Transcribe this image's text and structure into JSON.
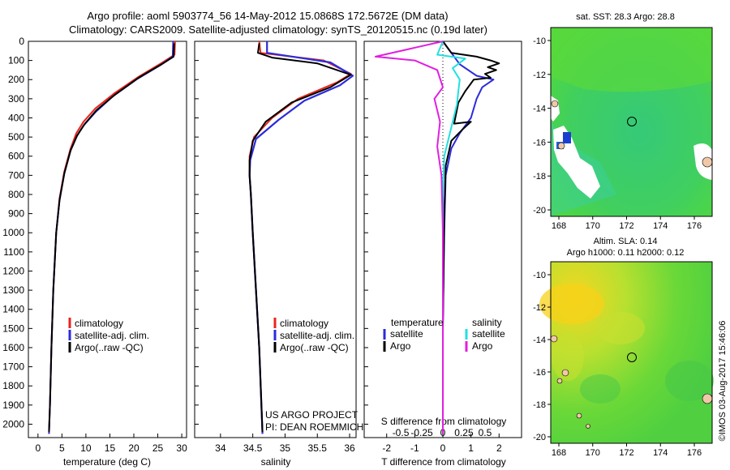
{
  "title_line1": "Argo profile: aoml 5903774_56 14-May-2012 15.0868S 172.5672E (DM data)",
  "title_line2": "Climatology: CARS2009. Satellite-adjusted climatology: synTS_20120515.nc (0.19d later)",
  "colors": {
    "climatology": "#e8241c",
    "satellite": "#2b2bdc",
    "argo": "#000000",
    "s_satellite": "#22e0e0",
    "s_argo": "#e020e0"
  },
  "chart_data": [
    {
      "type": "line",
      "title": "",
      "xlabel": "temperature (deg C)",
      "ylabel": "",
      "xlim": [
        -2,
        31
      ],
      "ylim": [
        2070,
        0
      ],
      "xticks": [
        0,
        5,
        10,
        15,
        20,
        25,
        30
      ],
      "yticks": [
        0,
        100,
        200,
        300,
        400,
        500,
        600,
        700,
        800,
        900,
        1000,
        1100,
        1200,
        1300,
        1400,
        1500,
        1600,
        1700,
        1800,
        1900,
        2000
      ],
      "legend": [
        "climatology",
        "satellite-adj. clim.",
        "Argo(..raw -QC)"
      ],
      "series": [
        {
          "name": "climatology",
          "points": [
            [
              28.6,
              0
            ],
            [
              28.5,
              70
            ],
            [
              26,
              110
            ],
            [
              21,
              185
            ],
            [
              16,
              270
            ],
            [
              12,
              350
            ],
            [
              9.5,
              420
            ],
            [
              8,
              480
            ],
            [
              6.8,
              560
            ],
            [
              5.5,
              680
            ],
            [
              4.5,
              820
            ],
            [
              3.8,
              1000
            ],
            [
              3.2,
              1300
            ],
            [
              2.8,
              1600
            ],
            [
              2.5,
              1900
            ],
            [
              2.3,
              2050
            ]
          ]
        },
        {
          "name": "satellite-adj. clim.",
          "points": [
            [
              28.2,
              0
            ],
            [
              28.1,
              80
            ],
            [
              25.5,
              125
            ],
            [
              20.5,
              200
            ],
            [
              15.5,
              290
            ],
            [
              12,
              370
            ],
            [
              9.5,
              440
            ],
            [
              8,
              500
            ],
            [
              6.8,
              570
            ],
            [
              5.5,
              690
            ],
            [
              4.5,
              830
            ],
            [
              3.8,
              1000
            ],
            [
              3.2,
              1300
            ],
            [
              2.8,
              1600
            ],
            [
              2.5,
              1900
            ],
            [
              2.3,
              2050
            ]
          ]
        },
        {
          "name": "Argo",
          "points": [
            [
              28.4,
              10
            ],
            [
              28.3,
              80
            ],
            [
              25.8,
              120
            ],
            [
              21,
              190
            ],
            [
              16,
              280
            ],
            [
              12.2,
              360
            ],
            [
              9.8,
              430
            ],
            [
              8.2,
              490
            ],
            [
              6.8,
              570
            ],
            [
              5.5,
              690
            ],
            [
              4.5,
              830
            ],
            [
              3.8,
              1000
            ],
            [
              3.2,
              1300
            ],
            [
              2.8,
              1600
            ],
            [
              2.5,
              1900
            ],
            [
              2.3,
              2040
            ]
          ]
        }
      ]
    },
    {
      "type": "line",
      "title": "",
      "xlabel": "salinity",
      "ylabel": "",
      "xlim": [
        33.6,
        36.1
      ],
      "ylim": [
        2070,
        0
      ],
      "xticks": [
        34,
        34.5,
        35,
        35.5,
        36
      ],
      "legend": [
        "climatology",
        "satellite-adj. clim.",
        "Argo(..raw -QC)"
      ],
      "series": [
        {
          "name": "climatology",
          "points": [
            [
              34.6,
              0
            ],
            [
              34.62,
              60
            ],
            [
              35.6,
              100
            ],
            [
              36.02,
              170
            ],
            [
              35.8,
              215
            ],
            [
              35.2,
              300
            ],
            [
              34.8,
              400
            ],
            [
              34.52,
              500
            ],
            [
              34.45,
              600
            ],
            [
              34.45,
              700
            ],
            [
              34.47,
              800
            ],
            [
              34.5,
              1000
            ],
            [
              34.55,
              1300
            ],
            [
              34.6,
              1600
            ],
            [
              34.65,
              2050
            ]
          ]
        },
        {
          "name": "satellite-adj. clim.",
          "points": [
            [
              34.72,
              0
            ],
            [
              34.72,
              60
            ],
            [
              35.7,
              110
            ],
            [
              36.05,
              180
            ],
            [
              35.85,
              230
            ],
            [
              35.3,
              310
            ],
            [
              34.9,
              410
            ],
            [
              34.55,
              510
            ],
            [
              34.46,
              620
            ],
            [
              34.45,
              700
            ],
            [
              34.47,
              800
            ],
            [
              34.5,
              1000
            ],
            [
              34.55,
              1300
            ],
            [
              34.6,
              1600
            ],
            [
              34.65,
              2050
            ]
          ]
        },
        {
          "name": "Argo",
          "points": [
            [
              34.6,
              10
            ],
            [
              34.58,
              60
            ],
            [
              34.8,
              85
            ],
            [
              35.5,
              115
            ],
            [
              36.02,
              175
            ],
            [
              35.7,
              240
            ],
            [
              35.1,
              320
            ],
            [
              34.7,
              420
            ],
            [
              34.5,
              520
            ],
            [
              34.45,
              620
            ],
            [
              34.45,
              700
            ],
            [
              34.47,
              800
            ],
            [
              34.5,
              1000
            ],
            [
              34.55,
              1300
            ],
            [
              34.6,
              1600
            ],
            [
              34.65,
              2040
            ]
          ]
        }
      ],
      "annotation": [
        "US ARGO PROJECT",
        "PI: DEAN ROEMMICH"
      ]
    },
    {
      "type": "line",
      "title": "",
      "xlabel": "T difference from climatology",
      "xlabel_top": "S difference from climatology",
      "xlim": [
        -2.8,
        2.8
      ],
      "ylim": [
        2070,
        0
      ],
      "xticks": [
        -2,
        -1,
        0,
        1,
        2
      ],
      "xticks_top_labels": [
        "-0.5",
        "-0.25",
        "0",
        "0.25",
        "0.5"
      ],
      "xticks_top_values": [
        -0.5,
        -0.25,
        0,
        0.25,
        0.5
      ],
      "legend": [
        "temperature",
        "satellite",
        "Argo",
        "salinity",
        "satellite",
        "Argo"
      ],
      "series": [
        {
          "name": "T satellite",
          "points": [
            [
              0,
              0
            ],
            [
              0.3,
              60
            ],
            [
              0.6,
              120
            ],
            [
              1.2,
              180
            ],
            [
              1.8,
              200
            ],
            [
              1.4,
              240
            ],
            [
              1.2,
              300
            ],
            [
              1.0,
              400
            ],
            [
              0.6,
              480
            ],
            [
              0.3,
              560
            ],
            [
              0.1,
              700
            ],
            [
              0.05,
              1000
            ],
            [
              0,
              1500
            ],
            [
              0,
              2050
            ]
          ]
        },
        {
          "name": "T Argo",
          "points": [
            [
              0,
              0
            ],
            [
              0.3,
              60
            ],
            [
              1.2,
              80
            ],
            [
              1.7,
              100
            ],
            [
              2.0,
              115
            ],
            [
              1.6,
              135
            ],
            [
              1.9,
              150
            ],
            [
              1.5,
              170
            ],
            [
              1.7,
              190
            ],
            [
              1.1,
              200
            ],
            [
              0.8,
              260
            ],
            [
              0.55,
              320
            ],
            [
              0.4,
              430
            ],
            [
              1.0,
              420
            ],
            [
              0.7,
              460
            ],
            [
              0.3,
              520
            ],
            [
              0.1,
              650
            ],
            [
              0.05,
              900
            ],
            [
              0,
              1500
            ],
            [
              0,
              2050
            ]
          ]
        },
        {
          "name": "S satellite",
          "points": [
            [
              0,
              0
            ],
            [
              -0.2,
              70
            ],
            [
              0.8,
              90
            ],
            [
              0.35,
              140
            ],
            [
              0.6,
              200
            ],
            [
              0.55,
              260
            ],
            [
              0.5,
              330
            ],
            [
              0.3,
              450
            ],
            [
              0.05,
              600
            ],
            [
              0,
              800
            ],
            [
              0,
              1200
            ],
            [
              0,
              2050
            ]
          ]
        },
        {
          "name": "S Argo",
          "points": [
            [
              0,
              0
            ],
            [
              -2.4,
              80
            ],
            [
              -1.0,
              100
            ],
            [
              -0.2,
              150
            ],
            [
              0,
              240
            ],
            [
              -0.3,
              300
            ],
            [
              -0.1,
              420
            ],
            [
              -0.2,
              550
            ],
            [
              -0.05,
              700
            ],
            [
              0,
              1000
            ],
            [
              0,
              2050
            ]
          ]
        }
      ]
    }
  ],
  "map1": {
    "title": "sat. SST: 28.3 Argo: 28.8",
    "yticks": [
      "-10",
      "-12",
      "-14",
      "-16",
      "-18",
      "-20"
    ],
    "xticks": [
      "168",
      "170",
      "172",
      "174",
      "176"
    ]
  },
  "map2": {
    "title1": "Altim. SLA: 0.14",
    "title2": "Argo h1000: 0.11 h2000: 0.12",
    "yticks": [
      "-10",
      "-12",
      "-14",
      "-16",
      "-18",
      "-20"
    ],
    "xticks": [
      "168",
      "170",
      "172",
      "174",
      "176"
    ]
  },
  "watermark": "©IMOS 03-Aug-2017 15:46:06"
}
